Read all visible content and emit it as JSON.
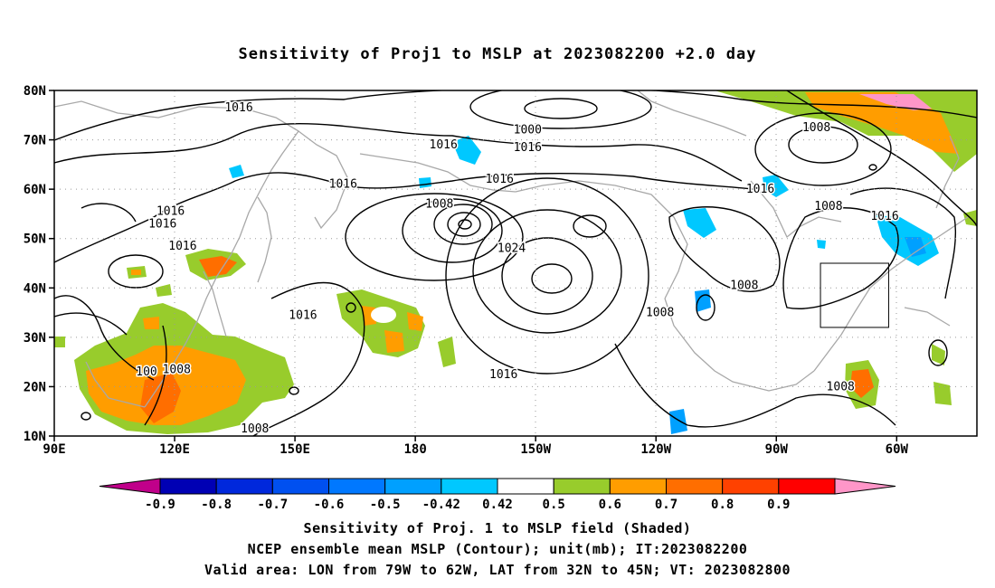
{
  "title": "Sensitivity of Proj1 to MSLP at 2023082200 +2.0 day",
  "lat_labels": [
    "80N",
    "70N",
    "60N",
    "50N",
    "40N",
    "30N",
    "20N",
    "10N"
  ],
  "lon_labels": [
    "90E",
    "120E",
    "150E",
    "180",
    "150W",
    "120W",
    "90W",
    "60W"
  ],
  "contour_labels": [
    {
      "text": "1016",
      "lon": 136,
      "lat": 76.5
    },
    {
      "text": "1000",
      "lon": 208,
      "lat": 72
    },
    {
      "text": "1016",
      "lon": 187,
      "lat": 69
    },
    {
      "text": "1016",
      "lon": 208,
      "lat": 68.5
    },
    {
      "text": "1008",
      "lon": 280,
      "lat": 72.5
    },
    {
      "text": "1016",
      "lon": 119,
      "lat": 55.5
    },
    {
      "text": "1016",
      "lon": 117,
      "lat": 53
    },
    {
      "text": "1016",
      "lon": 122,
      "lat": 48.5
    },
    {
      "text": "1016",
      "lon": 162,
      "lat": 61
    },
    {
      "text": "1016",
      "lon": 201,
      "lat": 62
    },
    {
      "text": "1008",
      "lon": 186,
      "lat": 57
    },
    {
      "text": "1016",
      "lon": 266,
      "lat": 60
    },
    {
      "text": "1008",
      "lon": 283,
      "lat": 56.5
    },
    {
      "text": "1016",
      "lon": 297,
      "lat": 54.5
    },
    {
      "text": "1024",
      "lon": 204,
      "lat": 48
    },
    {
      "text": "1008",
      "lon": 262,
      "lat": 40.5
    },
    {
      "text": "1008",
      "lon": 241,
      "lat": 35
    },
    {
      "text": "1016",
      "lon": 152,
      "lat": 34.5
    },
    {
      "text": "1016",
      "lon": 202,
      "lat": 22.5
    },
    {
      "text": "1008",
      "lon": 120.5,
      "lat": 23.5
    },
    {
      "text": "100",
      "lon": 113,
      "lat": 23
    },
    {
      "text": "1008",
      "lon": 140,
      "lat": 11.5
    },
    {
      "text": "1008",
      "lon": 286,
      "lat": 20
    }
  ],
  "colorbar": {
    "colors": [
      "#c0008a",
      "#0000b4",
      "#0028dc",
      "#0050f0",
      "#0078ff",
      "#00a0ff",
      "#00c8ff",
      "#ffffff",
      "#98cc2c",
      "#ff9d00",
      "#ff6e00",
      "#ff4100",
      "#ff0000",
      "#ff96c8"
    ],
    "labels": [
      "-0.9",
      "-0.8",
      "-0.7",
      "-0.6",
      "-0.5",
      "-0.42",
      "0.42",
      "0.5",
      "0.6",
      "0.7",
      "0.8",
      "0.9"
    ]
  },
  "captions": {
    "line1": "Sensitivity of Proj. 1 to MSLP field (Shaded)",
    "line2": "NCEP ensemble mean MSLP (Contour); unit(mb); IT:2023082200",
    "line3": "Valid area: LON from 79W to 62W, LAT from 32N to 45N; VT: 2023082800"
  },
  "valid_area": {
    "lon_min": -79,
    "lon_max": -62,
    "lat_min": 32,
    "lat_max": 45
  }
}
